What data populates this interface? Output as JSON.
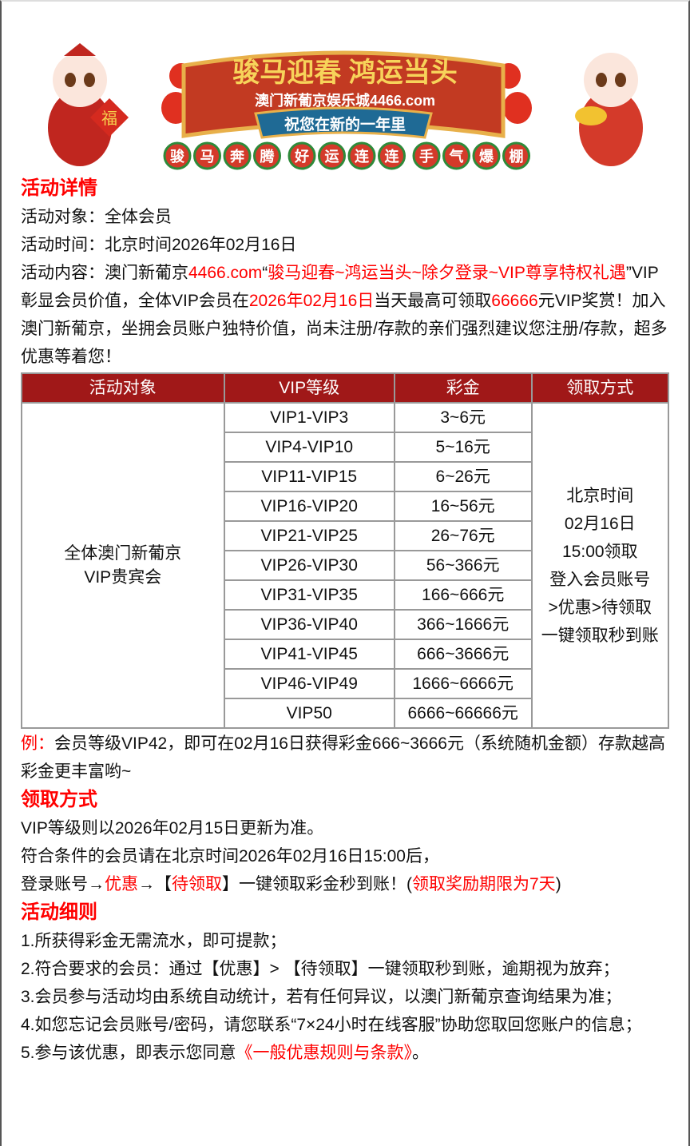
{
  "banner": {
    "title": "骏马迎春 鸿运当头",
    "subtitle": "澳门新葡京娱乐城4466.com",
    "ribbon": "祝您在新的一年里",
    "chars": [
      "骏",
      "马",
      "奔",
      "腾",
      "好",
      "运",
      "连",
      "连",
      "手",
      "气",
      "爆",
      "棚"
    ],
    "fu": "福"
  },
  "details": {
    "heading": "活动详情",
    "target": "活动对象：全体会员",
    "time": "活动时间：北京时间2026年02月16日",
    "c0": "活动内容：澳门新葡京",
    "c1": "4466.com",
    "c2": "“",
    "c3": "骏马迎春~鸿运当头~除夕登录~VIP尊享特权礼遇",
    "c4": "”VIP彰显会员价值，全体VIP会员在",
    "c5": "2026年02月16日",
    "c6": "当天最高可领取",
    "c7": "66666",
    "c8": "元VIP奖赏！加入澳门新葡京，坐拥会员账户独特价值，尚未注册/存款的亲们强烈建议您注册/存款，超多优惠等着您！"
  },
  "table": {
    "headers": [
      "活动对象",
      "VIP等级",
      "彩金",
      "领取方式"
    ],
    "target": "全体澳门新葡京VIP贵宾会",
    "rows": [
      [
        "VIP1-VIP3",
        "3~6元"
      ],
      [
        "VIP4-VIP10",
        "5~16元"
      ],
      [
        "VIP11-VIP15",
        "6~26元"
      ],
      [
        "VIP16-VIP20",
        "16~56元"
      ],
      [
        "VIP21-VIP25",
        "26~76元"
      ],
      [
        "VIP26-VIP30",
        "56~366元"
      ],
      [
        "VIP31-VIP35",
        "166~666元"
      ],
      [
        "VIP36-VIP40",
        "366~1666元"
      ],
      [
        "VIP41-VIP45",
        "666~3666元"
      ],
      [
        "VIP46-VIP49",
        "1666~6666元"
      ],
      [
        "VIP50",
        "6666~66666元"
      ]
    ],
    "method": [
      "北京时间",
      "02月16日",
      "15:00领取",
      "登入会员账号",
      ">优惠>待领取",
      "一键领取秒到账"
    ]
  },
  "example": {
    "label": "例：",
    "text": "会员等级VIP42，即可在02月16日获得彩金666~3666元（系统随机金额）存款越高彩金更丰富哟~"
  },
  "claim": {
    "heading": "领取方式",
    "l1": "VIP等级则以2026年02月15日更新为准。",
    "l2": "符合条件的会员请在北京时间2026年02月16日15:00后，",
    "l3a": "登录账号→",
    "l3b": "优惠",
    "l3c": "→【",
    "l3d": "待领取",
    "l3e": "】一键领取彩金秒到账！(",
    "l3f": "领取奖励期限为7天",
    "l3g": ")"
  },
  "rules": {
    "heading": "活动细则",
    "r1": "1.所获得彩金无需流水，即可提款；",
    "r2": "2.符合要求的会员：通过【优惠】> 【待领取】一键领取秒到账，逾期视为放弃；",
    "r3": "3.会员参与活动均由系统自动统计，若有任何异议，以澳门新葡京查询结果为准；",
    "r4": "4.如您忘记会员账号/密码，请您联系“7×24小时在线客服”协助您取回您账户的信息；",
    "r5a": "5.参与该优惠，即表示您同意",
    "r5b": "《一般优惠规则与条款》",
    "r5c": "。"
  }
}
